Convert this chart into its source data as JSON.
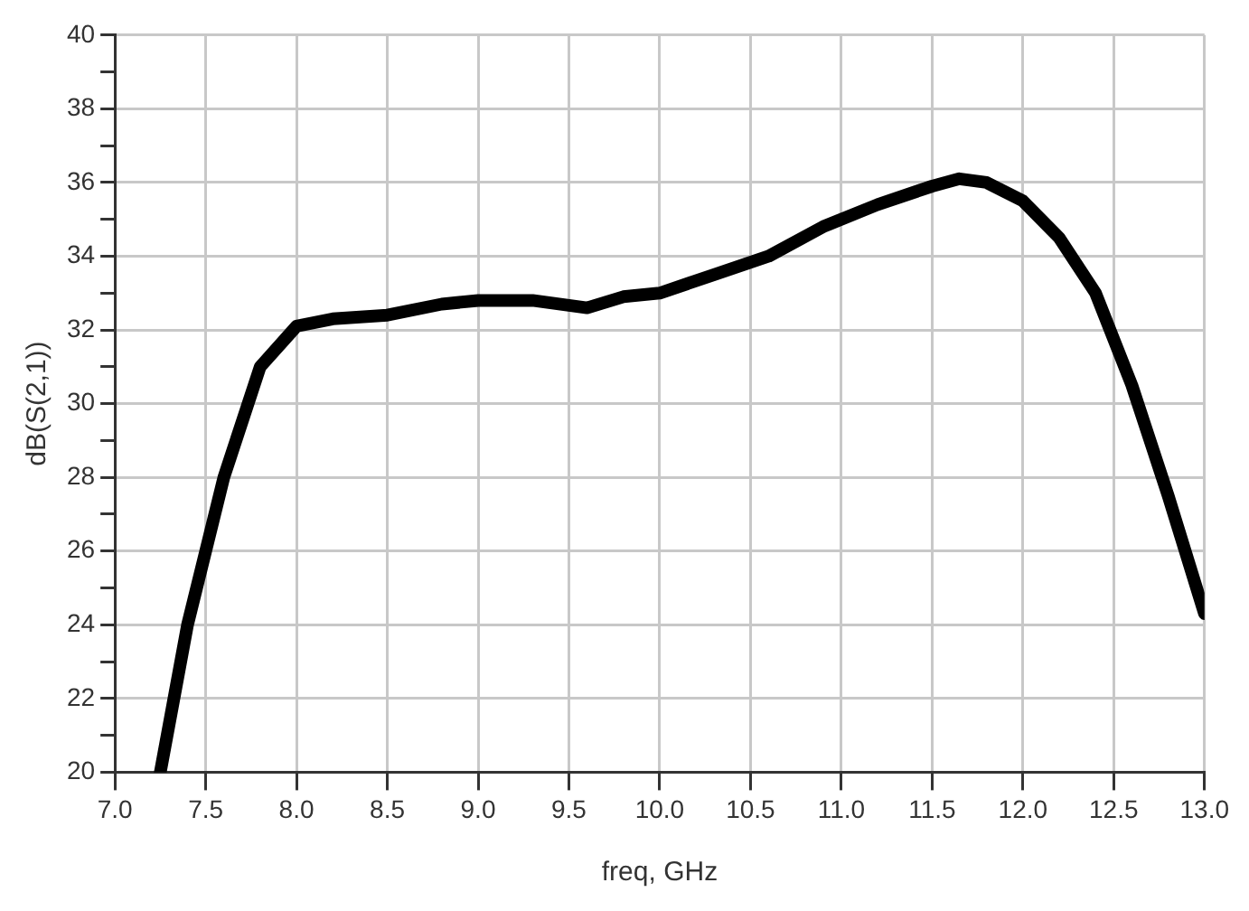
{
  "chart_data": {
    "type": "line",
    "xlabel": "freq, GHz",
    "ylabel": "dB(S(2,1))",
    "series": [
      {
        "color": "#000000",
        "x": [
          7.25,
          7.4,
          7.6,
          7.8,
          8.0,
          8.2,
          8.5,
          8.8,
          9.0,
          9.3,
          9.6,
          9.8,
          10.0,
          10.3,
          10.6,
          10.9,
          11.2,
          11.5,
          11.65,
          11.8,
          12.0,
          12.2,
          12.4,
          12.6,
          12.8,
          13.0
        ],
        "values": [
          20,
          24,
          28,
          31,
          32.1,
          32.3,
          32.4,
          32.7,
          32.8,
          32.8,
          32.6,
          32.9,
          33.0,
          33.5,
          34.0,
          34.8,
          35.4,
          35.9,
          36.1,
          36.0,
          35.5,
          34.5,
          33.0,
          30.5,
          27.5,
          24.3
        ]
      }
    ],
    "xlim": [
      7,
      13
    ],
    "ylim": [
      20,
      40
    ],
    "xticks": [
      {
        "value": 7,
        "label": "7.0"
      },
      7.5,
      {
        "value": 8,
        "label": "8.0"
      },
      8.5,
      {
        "value": 9,
        "label": "9.0"
      },
      9.5,
      {
        "value": 10,
        "label": "10.0"
      },
      10.5,
      {
        "value": 11,
        "label": "11.0"
      },
      11.5,
      {
        "value": 12,
        "label": "12.0"
      },
      12.5,
      {
        "value": 13,
        "label": "13.0"
      }
    ],
    "yticks": [
      20,
      {
        "value": 21,
        "label": null
      },
      22,
      {
        "value": 23,
        "label": null
      },
      24,
      {
        "value": 25,
        "label": null
      },
      26,
      {
        "value": 27,
        "label": null
      },
      28,
      {
        "value": 29,
        "label": null
      },
      30,
      {
        "value": 31,
        "label": null
      },
      32,
      {
        "value": 33,
        "label": null
      },
      34,
      {
        "value": 35,
        "label": null
      },
      36,
      {
        "value": 37,
        "label": null
      },
      38,
      {
        "value": 39,
        "label": null
      },
      40
    ],
    "grid": true,
    "legend": false,
    "marker": "none",
    "line_style": "solid"
  }
}
